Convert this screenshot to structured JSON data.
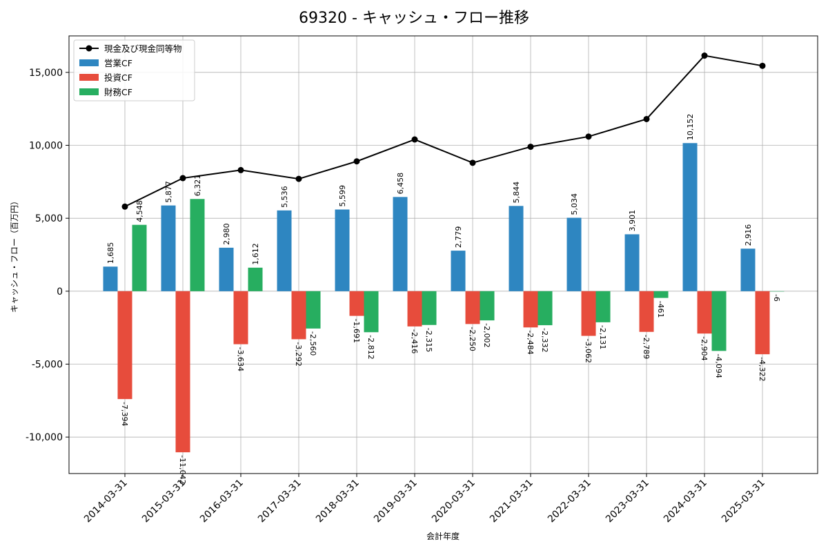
{
  "chart_data": {
    "type": "bar",
    "title": "69320 - キャッシュ・フロー推移",
    "xlabel": "会計年度",
    "ylabel": "キャッシュ・フロー（百万円）",
    "categories": [
      "2014-03-31",
      "2015-03-31",
      "2016-03-31",
      "2017-03-31",
      "2018-03-31",
      "2019-03-31",
      "2020-03-31",
      "2021-03-31",
      "2022-03-31",
      "2023-03-31",
      "2024-03-31",
      "2025-03-31"
    ],
    "ylim": [
      -12500,
      17500
    ],
    "yticks": [
      -10000,
      -5000,
      0,
      5000,
      10000,
      15000
    ],
    "ytick_labels": [
      "-10,000",
      "-5,000",
      "0",
      "5,000",
      "10,000",
      "15,000"
    ],
    "grid": true,
    "legend_position": "top-left",
    "series": [
      {
        "name": "営業CF",
        "kind": "bar",
        "color": "#2e86c1",
        "values": [
          1685,
          5877,
          2980,
          5536,
          5599,
          6458,
          2779,
          5844,
          5034,
          3901,
          10152,
          2916
        ],
        "labels": [
          "1,685",
          "5,877",
          "2,980",
          "5,536",
          "5,599",
          "6,458",
          "2,779",
          "5,844",
          "5,034",
          "3,901",
          "10,152",
          "2,916"
        ]
      },
      {
        "name": "投資CF",
        "kind": "bar",
        "color": "#e74c3c",
        "values": [
          -7394,
          -11042,
          -3634,
          -3292,
          -1691,
          -2416,
          -2250,
          -2484,
          -3062,
          -2789,
          -2904,
          -4322
        ],
        "labels": [
          "-7,394",
          "-11,042",
          "-3,634",
          "-3,292",
          "-1,691",
          "-2,416",
          "-2,250",
          "-2,484",
          "-3,062",
          "-2,789",
          "-2,904",
          "-4,322"
        ]
      },
      {
        "name": "財務CF",
        "kind": "bar",
        "color": "#27ae60",
        "values": [
          4548,
          6321,
          1612,
          -2560,
          -2812,
          -2315,
          -2002,
          -2332,
          -2131,
          -461,
          -4094,
          -6
        ],
        "labels": [
          "4,548",
          "6,321",
          "1,612",
          "-2,560",
          "-2,812",
          "-2,315",
          "-2,002",
          "-2,332",
          "-2,131",
          "-461",
          "-4,094",
          "-6"
        ]
      },
      {
        "name": "現金及び現金同等物",
        "kind": "line",
        "color": "#000000",
        "values": [
          5800,
          7750,
          8300,
          7700,
          8900,
          10400,
          8800,
          9900,
          10600,
          11800,
          16150,
          15450
        ]
      }
    ]
  }
}
